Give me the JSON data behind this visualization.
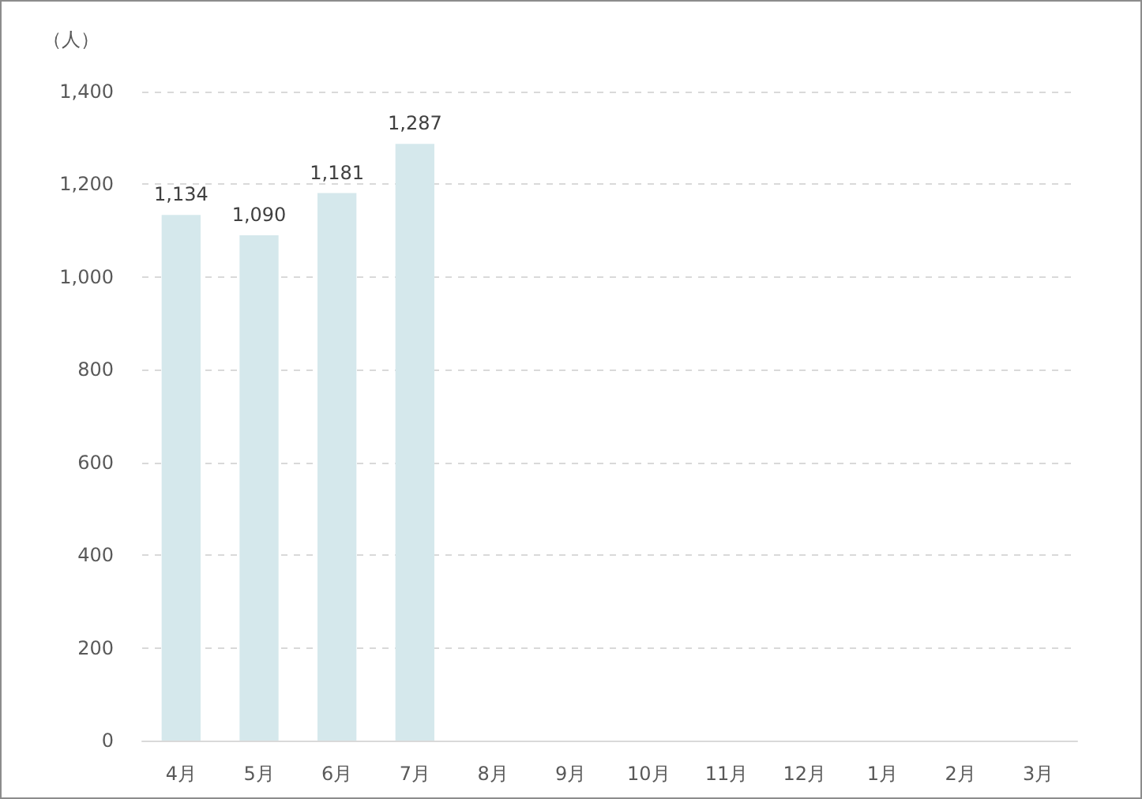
{
  "chart_data": {
    "type": "bar",
    "ylabel": "（人）",
    "categories": [
      "4月",
      "5月",
      "6月",
      "7月",
      "8月",
      "9月",
      "10月",
      "11月",
      "12月",
      "1月",
      "2月",
      "3月"
    ],
    "values": [
      1134,
      1090,
      1181,
      1287,
      null,
      null,
      null,
      null,
      null,
      null,
      null,
      null
    ],
    "value_labels": [
      "1,134",
      "1,090",
      "1,181",
      "1,287",
      null,
      null,
      null,
      null,
      null,
      null,
      null,
      null
    ],
    "color": "#d5e8ec",
    "ylim": [
      0,
      1400
    ],
    "yticks": [
      0,
      200,
      400,
      600,
      800,
      {
        "value": 1000,
        "label": "1,000"
      },
      {
        "value": 1200,
        "label": "1,200"
      },
      {
        "value": 1400,
        "label": "1,400"
      }
    ],
    "grid": "y"
  }
}
